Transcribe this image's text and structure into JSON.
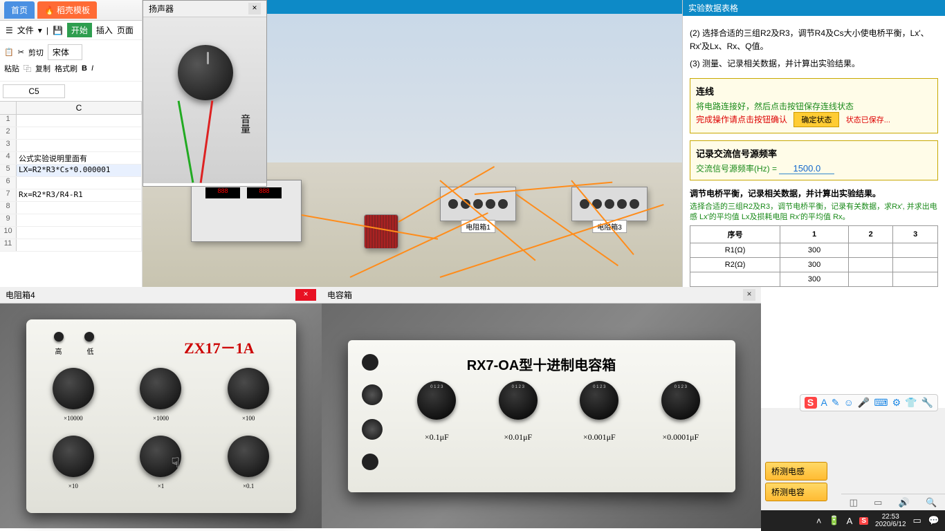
{
  "wps": {
    "tabs": {
      "home": "首页",
      "template": "稻壳模板"
    },
    "menu": {
      "file": "文件",
      "start": "开始",
      "insert": "插入",
      "page": "页面"
    },
    "toolbar": {
      "paste": "粘贴",
      "cut": "剪切",
      "copy": "复制",
      "format": "格式刷",
      "font": "宋体",
      "bold": "B",
      "italic": "I"
    },
    "cell_ref": "C5",
    "column": "C",
    "rows": [
      {
        "n": 1,
        "v": ""
      },
      {
        "n": 2,
        "v": ""
      },
      {
        "n": 3,
        "v": ""
      },
      {
        "n": 4,
        "v": "公式实验说明里面有"
      },
      {
        "n": 5,
        "v": "LX=R2*R3*Cs*0.000001"
      },
      {
        "n": 6,
        "v": ""
      },
      {
        "n": 7,
        "v": "Rx=R2*R3/R4-R1"
      },
      {
        "n": 8,
        "v": ""
      },
      {
        "n": 9,
        "v": ""
      },
      {
        "n": 10,
        "v": ""
      },
      {
        "n": 11,
        "v": ""
      }
    ]
  },
  "speaker_win": {
    "title": "扬声器",
    "volume_label": "音量"
  },
  "sim": {
    "rbox1_label": "电阻箱1",
    "rbox3_label": "电阻箱3"
  },
  "exp": {
    "title": "实验数据表格",
    "step2": "(2) 选择合适的三组R2及R3，调节R4及Cs大小使电桥平衡，Lx'、Rx'及Lx、Rx、Q值。",
    "step3": "(3) 测量、记录相关数据，并计算出实验结果。",
    "wiring": {
      "heading": "连线",
      "line1": "将电路连接好，然后点击按钮保存连线状态",
      "line2": "完成操作请点击按钮确认",
      "button": "确定状态",
      "saved": "状态已保存..."
    },
    "freq": {
      "heading": "记录交流信号源频率",
      "label": "交流信号源频率(Hz) =",
      "value": "1500.0"
    },
    "balance": {
      "heading": "调节电桥平衡，记录相关数据，并计算出实验结果。",
      "sub": "选择合适的三组R2及R3，调节电桥平衡，记录有关数据，求Rx', 并求出电感 Lx'的平均值 Lx及损耗电阻 Rx'的平均值 Rx。"
    },
    "table": {
      "cols": [
        "序号",
        "1",
        "2",
        "3"
      ],
      "rows": [
        [
          "R1(Ω)",
          "300",
          "",
          ""
        ],
        [
          "R2(Ω)",
          "300",
          "",
          ""
        ],
        [
          "",
          "300",
          "",
          ""
        ]
      ]
    }
  },
  "rbox_win": {
    "title": "电阻箱4",
    "model": "ZX17－1A",
    "term_hi": "高",
    "term_lo": "低",
    "multipliers": [
      "×10",
      "×10",
      "×10",
      "×10000",
      "×1000",
      "×100",
      "×10",
      "×1",
      "×0.1"
    ],
    "row1": [
      "×10",
      "×10",
      "×10"
    ],
    "row2": [
      "×10",
      "×1",
      "×0.1"
    ],
    "row1_sub": [
      "×10000",
      "×1000",
      "×100"
    ]
  },
  "cbox_win": {
    "title": "电容箱",
    "model": "RX7-OA型十进制电容箱",
    "dials": [
      "×0.1μF",
      "×0.01μF",
      "×0.001μF",
      "×0.0001μF"
    ]
  },
  "side_buttons": {
    "inductance": "桥测电感",
    "capacitance": "桥测电容"
  },
  "ime": {
    "letter": "A"
  },
  "statusbar_icons": [
    "◫",
    "▭",
    "🔊",
    "🔍"
  ],
  "taskbar": {
    "time": "22:53",
    "date": "2020/6/12"
  },
  "colors": {
    "wps_blue": "#4a90e2",
    "wps_orange": "#ff6b35",
    "start_green": "#2e9e4f",
    "sim_sky": "#c8d8e8",
    "wire_orange": "#ff8c1a",
    "box_border": "#c8a800",
    "box_bg": "#fffce8",
    "green_text": "#1a8a1a",
    "red_text": "#d00",
    "confirm_bg": "#ffcc33",
    "title_blue": "#0d8ac7",
    "model_red": "#c00"
  }
}
